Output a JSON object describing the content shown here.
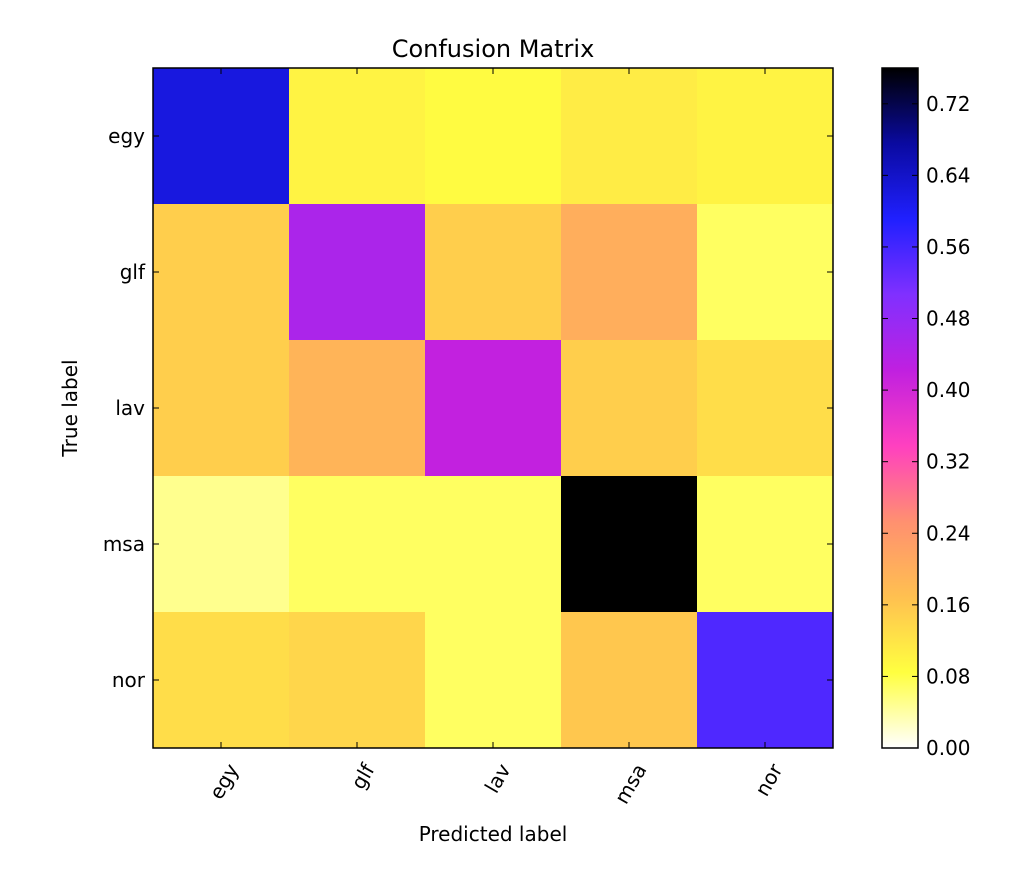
{
  "chart_data": {
    "type": "heatmap",
    "title": "Confusion Matrix",
    "xlabel": "Predicted label",
    "ylabel": "True label",
    "x_categories": [
      "egy",
      "glf",
      "lav",
      "msa",
      "nor"
    ],
    "y_categories": [
      "egy",
      "glf",
      "lav",
      "msa",
      "nor"
    ],
    "values": [
      [
        0.62,
        0.1,
        0.09,
        0.11,
        0.1
      ],
      [
        0.15,
        0.45,
        0.15,
        0.2,
        0.07
      ],
      [
        0.15,
        0.19,
        0.42,
        0.15,
        0.13
      ],
      [
        0.05,
        0.07,
        0.07,
        0.76,
        0.07
      ],
      [
        0.13,
        0.14,
        0.07,
        0.16,
        0.55
      ]
    ],
    "colorbar": {
      "range": [
        0,
        0.76
      ],
      "ticks": [
        "0.00",
        "0.08",
        "0.16",
        "0.24",
        "0.32",
        "0.40",
        "0.48",
        "0.56",
        "0.64",
        "0.72"
      ],
      "colormap": "gnuplot2_r",
      "color_stops": [
        "#ffffff",
        "#ffff40",
        "#ffc050",
        "#ff9070",
        "#ff40c0",
        "#c020e0",
        "#8030ff",
        "#2020ff",
        "#0a0aa0",
        "#000000"
      ]
    },
    "grid": false,
    "legend": "none"
  }
}
